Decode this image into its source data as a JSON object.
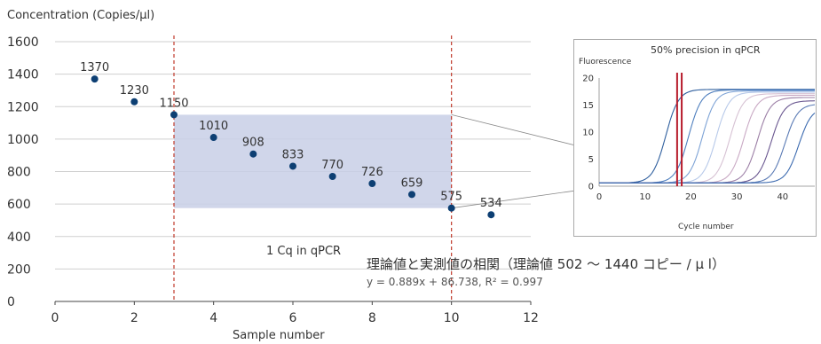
{
  "chart_data": [
    {
      "type": "scatter",
      "title": "",
      "ylabel": "Concentration (Copies/µl)",
      "xlabel": "Sample number",
      "xlim": [
        0,
        12
      ],
      "ylim": [
        0,
        1600
      ],
      "xticks": [
        0,
        2,
        4,
        6,
        8,
        10,
        12
      ],
      "yticks": [
        0,
        200,
        400,
        600,
        800,
        1000,
        1200,
        1400,
        1600
      ],
      "grid": "horizontal",
      "point_color": "#0d3f73",
      "x": [
        1,
        2,
        3,
        4,
        5,
        6,
        7,
        8,
        9,
        10,
        11
      ],
      "y": [
        1370,
        1230,
        1150,
        1010,
        908,
        833,
        770,
        726,
        659,
        575,
        534
      ],
      "data_labels": [
        "1370",
        "1230",
        "1150",
        "1010",
        "908",
        "833",
        "770",
        "726",
        "659",
        "575",
        "534"
      ],
      "vlines": [
        3,
        10
      ],
      "vline_color": "#c0392b",
      "shaded_region": {
        "x": [
          3,
          10
        ],
        "y": [
          575,
          1150
        ],
        "color": "#c8cfe6"
      },
      "annotations": [
        "1 Cq in qPCR",
        "理論値と実測値の相関（理論値 502 〜 1440 コピー / µ l）",
        "y = 0.889x + 86.738,  R² = 0.997"
      ]
    },
    {
      "type": "line",
      "title": "50% precision in qPCR",
      "ylabel": "Fluorescence",
      "xlabel": "Cycle number",
      "xlim": [
        0,
        47
      ],
      "ylim": [
        0,
        20
      ],
      "xticks": [
        0,
        10,
        20,
        30,
        40
      ],
      "yticks": [
        0,
        5,
        10,
        15,
        20
      ],
      "curve_midpoints": [
        14.5,
        19.5,
        22.5,
        25.5,
        28.5,
        31.5,
        34.5,
        37.5,
        40.5,
        43.5
      ],
      "curve_plateaus": [
        17.3,
        17.2,
        17.0,
        16.8,
        16.5,
        16.2,
        15.8,
        15.2,
        14.6,
        14.0
      ],
      "curve_colors": [
        "#2f5f9e",
        "#4f7fbe",
        "#7ea3d6",
        "#b7c9e9",
        "#d6c1d3",
        "#c9a9c4",
        "#9c7fa6",
        "#6a5790",
        "#5b7bb5",
        "#3d6bb0"
      ],
      "threshold_lines": [
        17,
        18
      ],
      "threshold_color": "#b71c2c"
    }
  ]
}
